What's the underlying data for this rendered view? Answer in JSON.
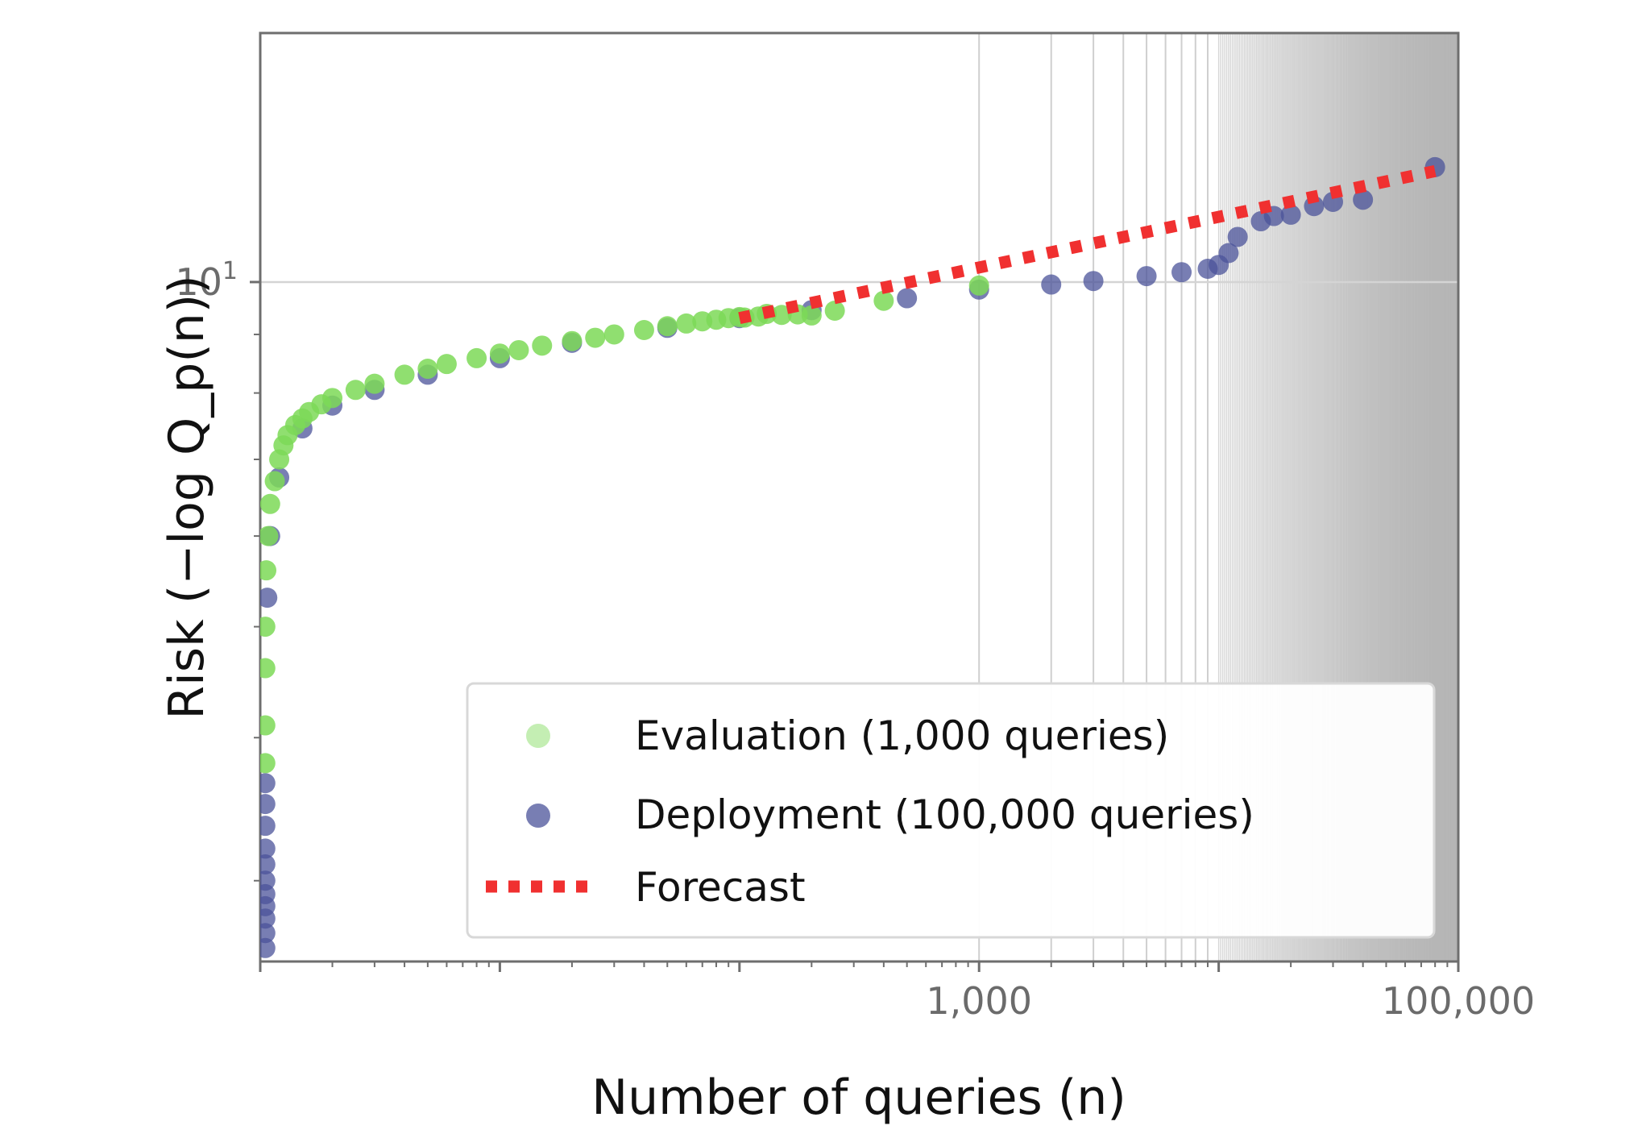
{
  "chart_data": {
    "type": "scatter",
    "title": "",
    "xlabel": "Number of queries (n)",
    "ylabel": "Risk (−log Q_p(n))",
    "x_scale": "log",
    "y_scale": "log",
    "xlim": [
      1,
      100000
    ],
    "ylim": [
      2.55,
      16.5
    ],
    "x_tick_labels": [
      {
        "value": 1000,
        "label": "1,000"
      },
      {
        "value": 100000,
        "label": "100,000"
      }
    ],
    "y_tick_labels": [
      {
        "value": 10,
        "label": "10",
        "exponent": "1"
      }
    ],
    "grid": "shaded vertical log-grid beyond x = 1,000; horizontal line at y = 10",
    "legend_position": "bottom-right",
    "series": [
      {
        "name": "Evaluation (1,000 queries)",
        "color": "#7dd957",
        "marker": "circle",
        "points": [
          [
            1.05,
            3.8
          ],
          [
            1.05,
            4.1
          ],
          [
            1.05,
            4.6
          ],
          [
            1.05,
            5.0
          ],
          [
            1.06,
            5.6
          ],
          [
            1.08,
            6.0
          ],
          [
            1.1,
            6.4
          ],
          [
            1.15,
            6.7
          ],
          [
            1.2,
            7.0
          ],
          [
            1.25,
            7.2
          ],
          [
            1.3,
            7.35
          ],
          [
            1.4,
            7.5
          ],
          [
            1.5,
            7.6
          ],
          [
            1.6,
            7.7
          ],
          [
            1.8,
            7.82
          ],
          [
            2,
            7.92
          ],
          [
            2.5,
            8.05
          ],
          [
            3,
            8.15
          ],
          [
            4,
            8.3
          ],
          [
            5,
            8.4
          ],
          [
            6,
            8.48
          ],
          [
            8,
            8.58
          ],
          [
            10,
            8.66
          ],
          [
            12,
            8.72
          ],
          [
            15,
            8.8
          ],
          [
            20,
            8.88
          ],
          [
            25,
            8.94
          ],
          [
            30,
            9.0
          ],
          [
            40,
            9.08
          ],
          [
            50,
            9.15
          ],
          [
            60,
            9.2
          ],
          [
            70,
            9.24
          ],
          [
            80,
            9.27
          ],
          [
            90,
            9.3
          ],
          [
            100,
            9.32
          ],
          [
            105,
            9.31
          ],
          [
            120,
            9.33
          ],
          [
            130,
            9.38
          ],
          [
            150,
            9.36
          ],
          [
            175,
            9.37
          ],
          [
            200,
            9.35
          ],
          [
            250,
            9.44
          ],
          [
            400,
            9.63
          ],
          [
            1000,
            9.93
          ]
        ]
      },
      {
        "name": "Deployment (100,000 queries)",
        "color": "#4b5399",
        "marker": "circle",
        "points": [
          [
            1.05,
            2.62
          ],
          [
            1.05,
            2.7
          ],
          [
            1.05,
            2.78
          ],
          [
            1.05,
            2.85
          ],
          [
            1.05,
            2.92
          ],
          [
            1.05,
            3.0
          ],
          [
            1.05,
            3.1
          ],
          [
            1.05,
            3.2
          ],
          [
            1.05,
            3.35
          ],
          [
            1.05,
            3.5
          ],
          [
            1.05,
            3.65
          ],
          [
            1.07,
            5.3
          ],
          [
            1.1,
            6.0
          ],
          [
            1.2,
            6.75
          ],
          [
            1.5,
            7.45
          ],
          [
            2,
            7.8
          ],
          [
            3,
            8.05
          ],
          [
            5,
            8.3
          ],
          [
            10,
            8.58
          ],
          [
            20,
            8.85
          ],
          [
            50,
            9.12
          ],
          [
            100,
            9.3
          ],
          [
            200,
            9.45
          ],
          [
            500,
            9.68
          ],
          [
            1000,
            9.85
          ],
          [
            2000,
            9.95
          ],
          [
            3000,
            10.02
          ],
          [
            5000,
            10.12
          ],
          [
            7000,
            10.2
          ],
          [
            9000,
            10.27
          ],
          [
            10000,
            10.35
          ],
          [
            11000,
            10.6
          ],
          [
            12000,
            10.95
          ],
          [
            15000,
            11.3
          ],
          [
            17000,
            11.42
          ],
          [
            20000,
            11.45
          ],
          [
            25000,
            11.65
          ],
          [
            30000,
            11.75
          ],
          [
            40000,
            11.8
          ],
          [
            80000,
            12.6
          ]
        ]
      },
      {
        "name": "Forecast",
        "color": "#f03030",
        "style": "dotted-line",
        "points": [
          [
            100,
            9.3
          ],
          [
            80000,
            12.5
          ]
        ]
      }
    ]
  }
}
